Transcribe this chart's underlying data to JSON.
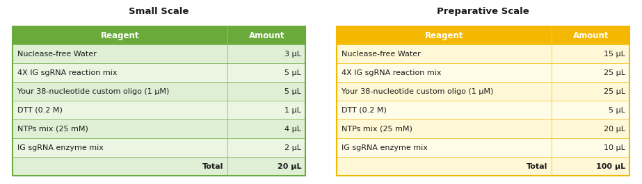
{
  "small_scale": {
    "title": "Small Scale",
    "header": [
      "Reagent",
      "Amount"
    ],
    "rows": [
      [
        "Nuclease-free Water",
        "3 μL"
      ],
      [
        "4X IG sgRNA reaction mix",
        "5 μL"
      ],
      [
        "Your 38-nucleotide custom oligo (1 μM)",
        "5 μL"
      ],
      [
        "DTT (0.2 M)",
        "1 μL"
      ],
      [
        "NTPs mix (25 mM)",
        "4 μL"
      ],
      [
        "IG sgRNA enzyme mix",
        "2 μL"
      ]
    ],
    "total_label": "Total",
    "total_value": "20 μL",
    "header_bg": "#6aaa3a",
    "header_fg": "#ffffff",
    "row_bg_even": "#deefd5",
    "row_bg_odd": "#eaf5e2",
    "total_bg": "#deefd5",
    "border_color": "#6aaa3a"
  },
  "prep_scale": {
    "title": "Preparative Scale",
    "header": [
      "Reagent",
      "Amount"
    ],
    "rows": [
      [
        "Nuclease-free Water",
        "15 μL"
      ],
      [
        "4X IG sgRNA reaction mix",
        "25 μL"
      ],
      [
        "Your 38-nucleotide custom oligo (1 μM)",
        "25 μL"
      ],
      [
        "DTT (0.2 M)",
        "5 μL"
      ],
      [
        "NTPs mix (25 mM)",
        "20 μL"
      ],
      [
        "IG sgRNA enzyme mix",
        "10 μL"
      ]
    ],
    "total_label": "Total",
    "total_value": "100 μL",
    "header_bg": "#f5b800",
    "header_fg": "#ffffff",
    "row_bg_even": "#fff8d6",
    "row_bg_odd": "#fffce8",
    "total_bg": "#fff8d6",
    "border_color": "#f5b800"
  },
  "text_color": "#1a1a1a",
  "font_size_title": 9.5,
  "font_size_header": 8.5,
  "font_size_body": 8.0,
  "col_split": 0.735,
  "fig_width": 9.23,
  "fig_height": 2.65,
  "dpi": 100
}
